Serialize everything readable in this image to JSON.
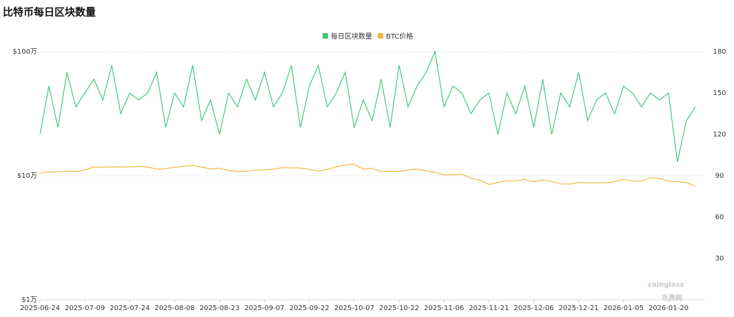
{
  "chart_data": {
    "type": "line",
    "title": "比特币每日区块数量",
    "x": [
      "2025-06-24",
      "2025-06-27",
      "2025-06-30",
      "2025-07-03",
      "2025-07-06",
      "2025-07-09",
      "2025-07-12",
      "2025-07-15",
      "2025-07-18",
      "2025-07-21",
      "2025-07-24",
      "2025-07-27",
      "2025-07-30",
      "2025-08-02",
      "2025-08-05",
      "2025-08-08",
      "2025-08-11",
      "2025-08-14",
      "2025-08-17",
      "2025-08-20",
      "2025-08-23",
      "2025-08-26",
      "2025-08-29",
      "2025-09-01",
      "2025-09-04",
      "2025-09-07",
      "2025-09-10",
      "2025-09-13",
      "2025-09-16",
      "2025-09-19",
      "2025-09-22",
      "2025-09-25",
      "2025-09-28",
      "2025-10-01",
      "2025-10-04",
      "2025-10-07",
      "2025-10-10",
      "2025-10-13",
      "2025-10-16",
      "2025-10-19",
      "2025-10-22",
      "2025-10-25",
      "2025-10-28",
      "2025-10-31",
      "2025-11-03",
      "2025-11-06",
      "2025-11-09",
      "2025-11-12",
      "2025-11-15",
      "2025-11-18",
      "2025-11-21",
      "2025-11-24",
      "2025-11-27",
      "2025-11-30",
      "2025-12-03",
      "2025-12-06",
      "2025-12-09",
      "2025-12-12",
      "2025-12-15",
      "2025-12-18",
      "2025-12-21",
      "2025-12-24",
      "2025-12-27",
      "2025-12-30",
      "2026-01-02",
      "2026-01-05",
      "2026-01-08",
      "2026-01-11",
      "2026-01-14",
      "2026-01-17",
      "2026-01-20",
      "2026-01-23",
      "2026-01-26",
      "2026-01-29"
    ],
    "series": [
      {
        "name": "每日区块数量",
        "color": "#3cc97a",
        "axis": "y2",
        "values": [
          120,
          155,
          125,
          165,
          140,
          150,
          160,
          145,
          170,
          135,
          150,
          145,
          150,
          165,
          125,
          150,
          140,
          170,
          130,
          145,
          120,
          150,
          140,
          160,
          145,
          165,
          140,
          150,
          170,
          125,
          155,
          170,
          140,
          150,
          165,
          125,
          145,
          130,
          160,
          125,
          170,
          140,
          155,
          165,
          180,
          140,
          155,
          150,
          135,
          145,
          150,
          120,
          150,
          135,
          155,
          125,
          160,
          120,
          150,
          140,
          165,
          130,
          145,
          150,
          135,
          155,
          150,
          140,
          150,
          145,
          150,
          100,
          130,
          140
        ]
      },
      {
        "name": "BTC价格",
        "color": "#f0b73b",
        "values": [
          105000,
          107000,
          107500,
          109000,
          108000,
          111000,
          117500,
          117000,
          118000,
          117500,
          118000,
          119000,
          117500,
          113000,
          114000,
          117000,
          119000,
          121000,
          117500,
          113500,
          115000,
          110000,
          108500,
          109000,
          111000,
          111000,
          113000,
          116000,
          115500,
          115500,
          112500,
          109000,
          112000,
          118000,
          122000,
          124000,
          113000,
          115000,
          108000,
          108500,
          108000,
          111500,
          113000,
          109500,
          106500,
          101500,
          102000,
          103000,
          95500,
          92000,
          85000,
          88000,
          91000,
          90500,
          93500,
          89500,
          92500,
          90000,
          86000,
          85500,
          88500,
          87500,
          87500,
          88000,
          89500,
          93500,
          90500,
          90500,
          96500,
          95000,
          90500,
          89500,
          88000,
          82500
        ]
      }
    ],
    "xlim": [
      "2025-06-24",
      "2026-02-01"
    ],
    "xticks": [
      "2025-06-24",
      "2025-07-09",
      "2025-07-24",
      "2025-08-08",
      "2025-08-23",
      "2025-09-07",
      "2025-09-22",
      "2025-10-07",
      "2025-10-22",
      "2025-11-06",
      "2025-11-21",
      "2025-12-06",
      "2025-12-21",
      "2026-01-05",
      "2026-01-20"
    ],
    "ylim": [
      10000,
      1000000
    ],
    "log_y": true,
    "yticks": [
      {
        "value": 10000,
        "label": "$1万"
      },
      {
        "value": 100000,
        "label": "$10万"
      },
      {
        "value": 1000000,
        "label": "$100万"
      }
    ],
    "y2lim": [
      0,
      180
    ],
    "y2ticks": [
      30,
      60,
      90,
      120,
      150,
      180
    ],
    "grid": true,
    "legend": "top",
    "watermarks": [
      "coinglass",
      "币界网"
    ]
  }
}
